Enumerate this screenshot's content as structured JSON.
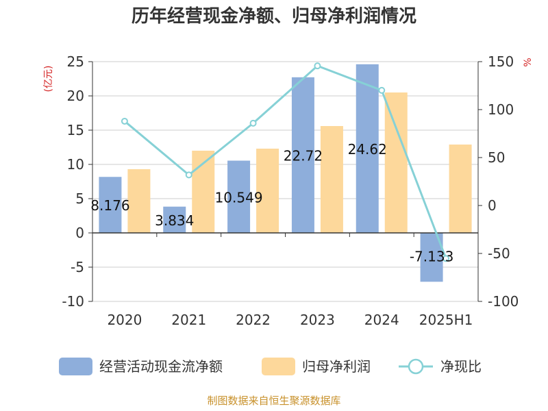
{
  "chart_data": {
    "type": "bar",
    "title": "历年经营现金净额、归母净利润情况",
    "categories": [
      "2020",
      "2021",
      "2022",
      "2023",
      "2024",
      "2025H1"
    ],
    "series": [
      {
        "name": "经营活动现金流净额",
        "kind": "bar",
        "axis": "left",
        "color": "#8eaedb",
        "values": [
          8.176,
          3.834,
          10.549,
          22.72,
          24.62,
          -7.133
        ],
        "labels": [
          "8.176",
          "3.834",
          "10.549",
          "22.72",
          "24.62",
          "-7.133"
        ]
      },
      {
        "name": "归母净利润",
        "kind": "bar",
        "axis": "left",
        "color": "#fdd89b",
        "values": [
          9.3,
          12.0,
          12.3,
          15.6,
          20.5,
          12.9
        ]
      },
      {
        "name": "净现比",
        "kind": "line",
        "axis": "right",
        "color": "#86d1d6",
        "values": [
          87.9,
          31.9,
          85.8,
          145.6,
          120.1,
          -55.3
        ]
      }
    ],
    "y_left": {
      "unit": "(亿元)",
      "min": -10,
      "max": 25,
      "ticks": [
        -10,
        -5,
        0,
        5,
        10,
        15,
        20,
        25
      ]
    },
    "y_right": {
      "unit": "%",
      "min": -100,
      "max": 150,
      "ticks": [
        -100,
        -50,
        0,
        50,
        100,
        150
      ]
    },
    "grid": true,
    "legend_position": "bottom"
  },
  "source": "制图数据来自恒生聚源数据库"
}
